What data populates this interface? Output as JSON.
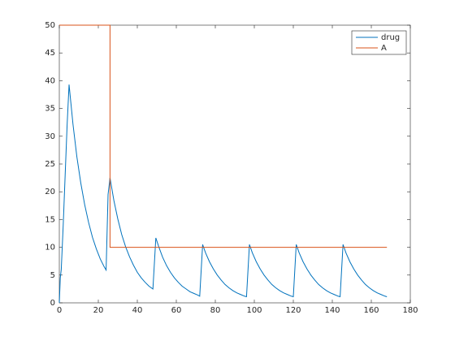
{
  "chart_data": {
    "type": "line",
    "xlim": [
      0,
      180
    ],
    "xticks": [
      0,
      20,
      40,
      60,
      80,
      100,
      120,
      140,
      160,
      180
    ],
    "ylim": [
      0,
      50
    ],
    "yticks": [
      0,
      5,
      10,
      15,
      20,
      25,
      30,
      35,
      40,
      45,
      50
    ],
    "legend": "upper right",
    "series": [
      {
        "name": "drug",
        "color": "#0072bd",
        "x": [
          0,
          0.5,
          1,
          2,
          3,
          4,
          5,
          7,
          9,
          11,
          13,
          15,
          17,
          19,
          21,
          23,
          24,
          25,
          26,
          28,
          30,
          32,
          34,
          36,
          38,
          40,
          42,
          44,
          46,
          48,
          49.5,
          51,
          53,
          55,
          57,
          59,
          61,
          63,
          65,
          67,
          69,
          71,
          72,
          73.5,
          75,
          77,
          79,
          81,
          83,
          85,
          87,
          89,
          91,
          93,
          95,
          96,
          97.5,
          99,
          101,
          103,
          105,
          107,
          109,
          111,
          113,
          115,
          117,
          119,
          120,
          121.5,
          123,
          125,
          127,
          129,
          131,
          133,
          135,
          137,
          139,
          141,
          143,
          144,
          145.5,
          147,
          149,
          151,
          153,
          155,
          157,
          159,
          161,
          163,
          165,
          167,
          168
        ],
        "values": [
          0,
          4.5,
          6,
          14,
          23,
          32,
          39.3,
          32.2,
          26.3,
          21.6,
          17.7,
          14.5,
          11.8,
          9.7,
          7.9,
          6.5,
          5.9,
          19.5,
          22.5,
          18.4,
          15.1,
          12.3,
          10.1,
          8.3,
          6.8,
          5.5,
          4.5,
          3.7,
          3.0,
          2.5,
          11.7,
          10.1,
          8.2,
          6.7,
          5.5,
          4.5,
          3.7,
          3.0,
          2.5,
          2.0,
          1.7,
          1.4,
          1.2,
          10.5,
          9.0,
          7.4,
          6.1,
          5.0,
          4.1,
          3.3,
          2.7,
          2.2,
          1.8,
          1.5,
          1.2,
          1.1,
          10.5,
          9.0,
          7.4,
          6.1,
          5.0,
          4.1,
          3.3,
          2.7,
          2.2,
          1.8,
          1.5,
          1.2,
          1.1,
          10.5,
          9.0,
          7.4,
          6.1,
          5.0,
          4.1,
          3.3,
          2.7,
          2.2,
          1.8,
          1.5,
          1.2,
          1.1,
          10.5,
          9.0,
          7.4,
          6.1,
          5.0,
          4.1,
          3.3,
          2.7,
          2.2,
          1.8,
          1.5,
          1.2,
          1.1
        ]
      },
      {
        "name": "A",
        "color": "#d95319",
        "x": [
          0,
          26,
          26,
          168
        ],
        "values": [
          50,
          50,
          10,
          10
        ]
      }
    ]
  }
}
